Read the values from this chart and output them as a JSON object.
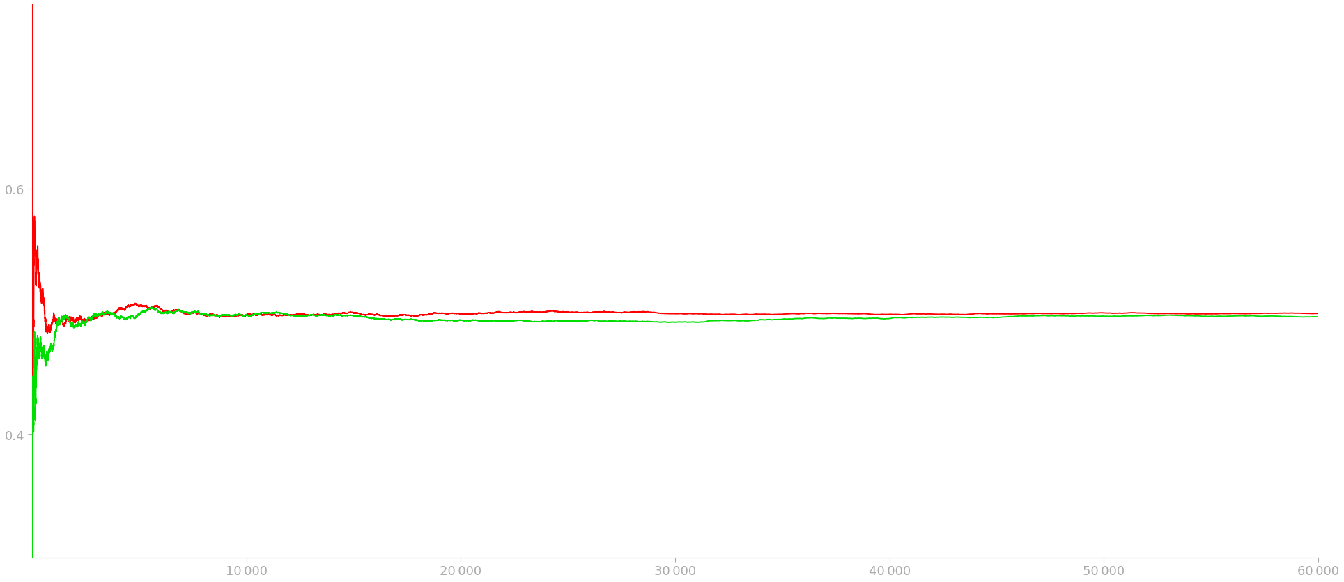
{
  "title": "",
  "xlim": [
    0,
    60000
  ],
  "ylim": [
    0.3,
    0.75
  ],
  "yticks": [
    0.4,
    0.6
  ],
  "xticks": [
    10000,
    20000,
    30000,
    40000,
    50000,
    60000
  ],
  "xtick_labels": [
    "10 000",
    "20 000",
    "30 000",
    "40 000",
    "50 000",
    "60 000"
  ],
  "n_samples": 60000,
  "red_color": "#ff0000",
  "green_color": "#00dd00",
  "linewidth": 1.3,
  "background_color": "#ffffff",
  "axis_color": "#aaaaaa",
  "tick_color": "#aaaaaa",
  "figsize": [
    19.29,
    8.37
  ],
  "dpi": 100
}
